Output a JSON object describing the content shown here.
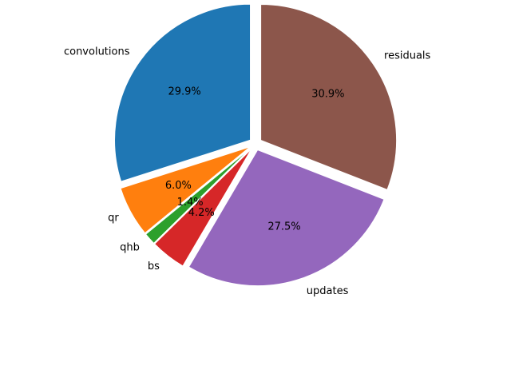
{
  "chart_data": {
    "type": "pie",
    "title": "",
    "start_angle_deg": 90,
    "direction": "counterclockwise",
    "slices": [
      {
        "label": "convolutions",
        "value": 29.9,
        "pct_label": "29.9%",
        "color": "#1f77b4",
        "exploded": true
      },
      {
        "label": "qr",
        "value": 6.0,
        "pct_label": "6.0%",
        "color": "#ff7f0e",
        "exploded": true
      },
      {
        "label": "qhb",
        "value": 1.4,
        "pct_label": "1.4%",
        "color": "#2ca02c",
        "exploded": true
      },
      {
        "label": "bs",
        "value": 4.2,
        "pct_label": "4.2%",
        "color": "#d62728",
        "exploded": true
      },
      {
        "label": "updates",
        "value": 27.5,
        "pct_label": "27.5%",
        "color": "#9467bd",
        "exploded": true
      },
      {
        "label": "residuals",
        "value": 30.9,
        "pct_label": "30.9%",
        "color": "#8c564b",
        "exploded": true
      }
    ]
  }
}
